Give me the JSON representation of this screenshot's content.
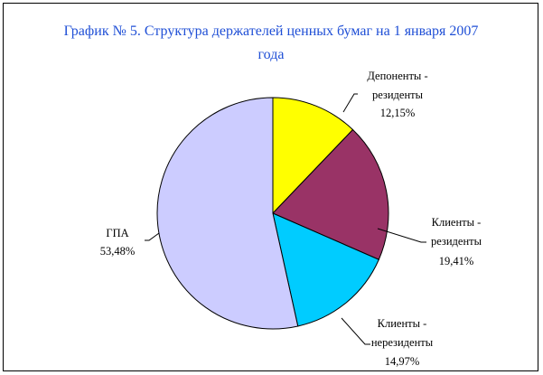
{
  "chart_data": {
    "type": "pie",
    "title": "График № 5. Структура держателей ценных бумаг на 1 января 2007 года",
    "categories": [
      "Депоненты -\nрезиденты",
      "Клиенты -\nрезиденты",
      "Клиенты -\nнерезиденты",
      "ГПА"
    ],
    "values": [
      12.15,
      19.41,
      14.97,
      53.48
    ],
    "value_labels": [
      "12,15%",
      "19,41%",
      "14,97%",
      "53,48%"
    ],
    "colors": [
      "#ffff00",
      "#993366",
      "#00ccff",
      "#ccccff"
    ]
  }
}
